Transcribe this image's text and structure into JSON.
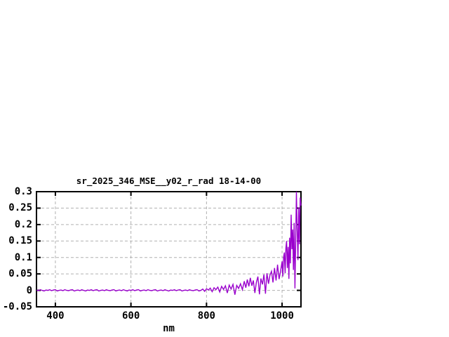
{
  "window": {
    "background": "#ffffff"
  },
  "chart_data": {
    "type": "line",
    "title": "sr_2025_346_MSE__y02_r_rad 18-14-00",
    "xlabel": "nm",
    "ylabel": "",
    "xlim": [
      350,
      1050
    ],
    "ylim": [
      -0.05,
      0.3
    ],
    "grid": true,
    "legend_position": "none",
    "x_ticks": [
      {
        "value": 400,
        "label": "400"
      },
      {
        "value": 600,
        "label": "600"
      },
      {
        "value": 800,
        "label": "800"
      },
      {
        "value": 1000,
        "label": "1000"
      }
    ],
    "y_ticks": [
      {
        "value": -0.05,
        "label": "-0.05"
      },
      {
        "value": 0,
        "label": "0"
      },
      {
        "value": 0.05,
        "label": "0.05"
      },
      {
        "value": 0.1,
        "label": "0.1"
      },
      {
        "value": 0.15,
        "label": "0.15"
      },
      {
        "value": 0.2,
        "label": "0.2"
      },
      {
        "value": 0.25,
        "label": "0.25"
      },
      {
        "value": 0.3,
        "label": "0.3"
      }
    ],
    "colors": {
      "line": "#9a00cd",
      "grid": "#b0b0b0",
      "border": "#000000",
      "text": "#000000"
    },
    "series": [
      {
        "name": "sr_2025_346_MSE__y02_r_rad",
        "points": [
          [
            350,
            0.001
          ],
          [
            355,
            -0.001
          ],
          [
            360,
            0.002
          ],
          [
            365,
            0
          ],
          [
            370,
            -0.002
          ],
          [
            375,
            0.001
          ],
          [
            380,
            0
          ],
          [
            385,
            0.002
          ],
          [
            390,
            -0.001
          ],
          [
            395,
            0.001
          ],
          [
            400,
            0.002
          ],
          [
            405,
            -0.002
          ],
          [
            410,
            0
          ],
          [
            415,
            0.001
          ],
          [
            420,
            -0.001
          ],
          [
            425,
            0.002
          ],
          [
            430,
            0
          ],
          [
            435,
            -0.001
          ],
          [
            440,
            0.001
          ],
          [
            445,
            0.002
          ],
          [
            450,
            -0.002
          ],
          [
            455,
            0
          ],
          [
            460,
            0.001
          ],
          [
            465,
            -0.001
          ],
          [
            470,
            0.002
          ],
          [
            475,
            0
          ],
          [
            480,
            -0.002
          ],
          [
            485,
            0.001
          ],
          [
            490,
            0
          ],
          [
            495,
            0.002
          ],
          [
            500,
            -0.001
          ],
          [
            505,
            0.001
          ],
          [
            510,
            0.002
          ],
          [
            515,
            -0.002
          ],
          [
            520,
            0
          ],
          [
            525,
            0.001
          ],
          [
            530,
            -0.001
          ],
          [
            535,
            0.002
          ],
          [
            540,
            0
          ],
          [
            545,
            -0.001
          ],
          [
            550,
            0.001
          ],
          [
            555,
            0.002
          ],
          [
            560,
            -0.002
          ],
          [
            565,
            0
          ],
          [
            570,
            0.001
          ],
          [
            575,
            -0.001
          ],
          [
            580,
            0.002
          ],
          [
            585,
            0
          ],
          [
            590,
            -0.002
          ],
          [
            595,
            0.001
          ],
          [
            600,
            0
          ],
          [
            605,
            0.002
          ],
          [
            610,
            -0.001
          ],
          [
            615,
            0.001
          ],
          [
            620,
            0.002
          ],
          [
            625,
            -0.002
          ],
          [
            630,
            0
          ],
          [
            635,
            0.001
          ],
          [
            640,
            -0.001
          ],
          [
            645,
            0.002
          ],
          [
            650,
            0
          ],
          [
            655,
            -0.001
          ],
          [
            660,
            0.001
          ],
          [
            665,
            0.002
          ],
          [
            670,
            -0.002
          ],
          [
            675,
            0
          ],
          [
            680,
            0.001
          ],
          [
            685,
            -0.001
          ],
          [
            690,
            0.002
          ],
          [
            695,
            0
          ],
          [
            700,
            -0.002
          ],
          [
            705,
            0.001
          ],
          [
            710,
            0
          ],
          [
            715,
            0.002
          ],
          [
            720,
            -0.001
          ],
          [
            725,
            0.001
          ],
          [
            730,
            0.002
          ],
          [
            735,
            -0.002
          ],
          [
            740,
            0
          ],
          [
            745,
            0.001
          ],
          [
            750,
            -0.001
          ],
          [
            755,
            0.002
          ],
          [
            760,
            0
          ],
          [
            765,
            -0.001
          ],
          [
            770,
            0.001
          ],
          [
            775,
            0.002
          ],
          [
            780,
            -0.002
          ],
          [
            785,
            0
          ],
          [
            790,
            0.004
          ],
          [
            795,
            -0.003
          ],
          [
            800,
            0.005
          ],
          [
            805,
            0.001
          ],
          [
            810,
            0.007
          ],
          [
            815,
            -0.004
          ],
          [
            820,
            0.008
          ],
          [
            825,
            0.002
          ],
          [
            830,
            0.01
          ],
          [
            835,
            -0.005
          ],
          [
            840,
            0.012
          ],
          [
            845,
            0.003
          ],
          [
            850,
            0.014
          ],
          [
            855,
            -0.008
          ],
          [
            860,
            0.016
          ],
          [
            865,
            0.004
          ],
          [
            870,
            0.018
          ],
          [
            875,
            -0.013
          ],
          [
            880,
            0.015
          ],
          [
            885,
            0.006
          ],
          [
            890,
            0.02
          ],
          [
            895,
            0.002
          ],
          [
            900,
            0.028
          ],
          [
            904,
            0.008
          ],
          [
            908,
            0.033
          ],
          [
            912,
            0.012
          ],
          [
            916,
            0.038
          ],
          [
            920,
            0.014
          ],
          [
            924,
            0.03
          ],
          [
            928,
            -0.008
          ],
          [
            932,
            0.024
          ],
          [
            936,
            0.042
          ],
          [
            940,
            -0.012
          ],
          [
            944,
            0.036
          ],
          [
            948,
            0.018
          ],
          [
            952,
            0.048
          ],
          [
            956,
            -0.01
          ],
          [
            960,
            0.052
          ],
          [
            964,
            0.02
          ],
          [
            968,
            0.046
          ],
          [
            972,
            0.058
          ],
          [
            976,
            0.024
          ],
          [
            980,
            0.068
          ],
          [
            984,
            0.03
          ],
          [
            988,
            0.078
          ],
          [
            992,
            0.034
          ],
          [
            996,
            0.058
          ],
          [
            1000,
            0.088
          ],
          [
            1002,
            0.042
          ],
          [
            1004,
            0.1
          ],
          [
            1006,
            0.115
          ],
          [
            1008,
            0.052
          ],
          [
            1010,
            0.128
          ],
          [
            1012,
            0.15
          ],
          [
            1014,
            0.068
          ],
          [
            1016,
            0.132
          ],
          [
            1018,
            0.035
          ],
          [
            1020,
            0.16
          ],
          [
            1022,
            0.082
          ],
          [
            1024,
            0.23
          ],
          [
            1026,
            0.125
          ],
          [
            1028,
            0.185
          ],
          [
            1030,
            0.062
          ],
          [
            1032,
            0.205
          ],
          [
            1034,
            0.006
          ],
          [
            1036,
            0.155
          ],
          [
            1038,
            0.3
          ],
          [
            1040,
            0.185
          ],
          [
            1042,
            0.092
          ],
          [
            1044,
            0.252
          ],
          [
            1046,
            0.14
          ],
          [
            1048,
            0.282
          ],
          [
            1050,
            0.258
          ]
        ]
      }
    ]
  }
}
